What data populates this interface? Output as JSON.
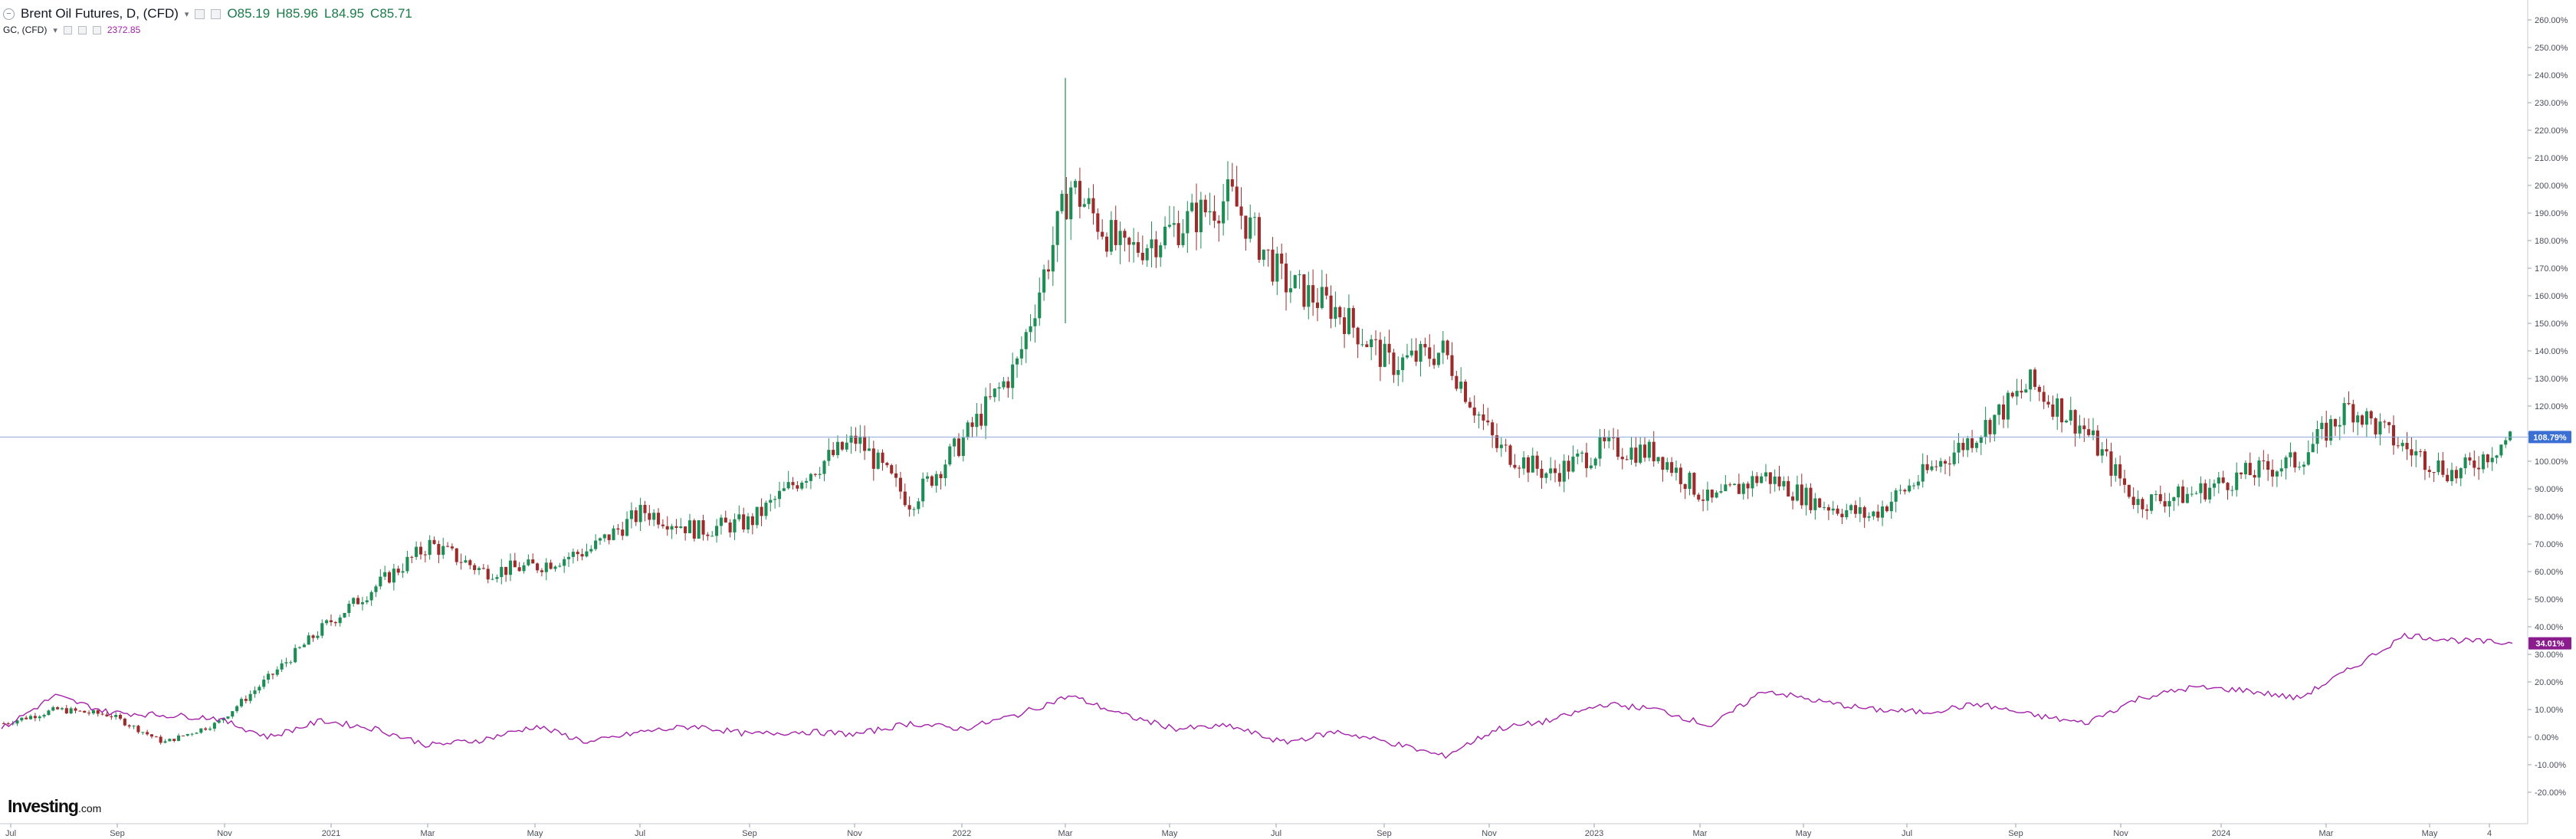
{
  "legend": {
    "main_title": "Brent Oil Futures, D, (CFD)",
    "caret": "▾",
    "open": "O85.19",
    "high": "H85.96",
    "low": "L84.95",
    "close": "C85.71",
    "sub_title": "GC, (CFD)",
    "sub_value": "2372.85"
  },
  "logo": {
    "brand": "Investing",
    "suffix": ".com"
  },
  "colors": {
    "candle_up": "#1e8c55",
    "candle_down": "#9c2c2c",
    "gold_line": "#a321a8",
    "hline": "#8fa8d6",
    "badge_brent": "#3b6fd4",
    "badge_gold": "#8a1c8e"
  },
  "chart_data": {
    "type": "line",
    "title": "",
    "xlabel": "",
    "ylabel": "",
    "ylim": [
      -25,
      265
    ],
    "y_tick_labels": [
      "260.00%",
      "250.00%",
      "240.00%",
      "230.00%",
      "220.00%",
      "210.00%",
      "200.00%",
      "190.00%",
      "180.00%",
      "170.00%",
      "160.00%",
      "150.00%",
      "140.00%",
      "130.00%",
      "120.00%",
      "110.00%",
      "100.00%",
      "90.00%",
      "80.00%",
      "70.00%",
      "60.00%",
      "50.00%",
      "40.00%",
      "30.00%",
      "20.00%",
      "10.00%",
      "0.00%",
      "-10.00%",
      "-20.00%"
    ],
    "x_tick_labels": [
      "Jul",
      "Sep",
      "Nov",
      "2021",
      "Mar",
      "May",
      "Jul",
      "Sep",
      "Nov",
      "2022",
      "Mar",
      "May",
      "Jul",
      "Sep",
      "Nov",
      "2023",
      "Mar",
      "May",
      "Jul",
      "Sep",
      "Nov",
      "2024",
      "Mar",
      "May",
      "4"
    ],
    "last_values": {
      "brent": "108.79%",
      "gold": "34.01%"
    },
    "series": [
      {
        "name": "Brent Oil Futures, D, (CFD)",
        "style": "candlestick",
        "x": [
          "Jul",
          "Aug",
          "Sep",
          "Oct",
          "Nov",
          "Dec",
          "2021",
          "Feb",
          "Mar",
          "Apr",
          "May",
          "Jun",
          "Jul",
          "Aug",
          "Sep",
          "Oct",
          "Nov",
          "Dec",
          "2022",
          "Feb",
          "Mar",
          "Apr",
          "May",
          "Jun",
          "Jul",
          "Aug",
          "Sep",
          "Oct",
          "Nov",
          "Dec",
          "2023",
          "Feb",
          "Mar",
          "Apr",
          "May",
          "Jun",
          "Jul",
          "Aug",
          "Sep",
          "Oct",
          "Nov",
          "Dec",
          "2024",
          "Feb",
          "Mar",
          "Apr",
          "May",
          "Jun"
        ],
        "values": [
          5,
          10,
          8,
          -2,
          5,
          22,
          40,
          55,
          70,
          60,
          62,
          68,
          82,
          75,
          78,
          95,
          108,
          85,
          108,
          135,
          200,
          175,
          185,
          196,
          165,
          155,
          135,
          140,
          105,
          95,
          105,
          103,
          85,
          95,
          85,
          80,
          95,
          110,
          128,
          112,
          85,
          88,
          95,
          100,
          120,
          105,
          95,
          108.79
        ]
      },
      {
        "name": "GC, (CFD)",
        "style": "line",
        "x": [
          "Jul",
          "Aug",
          "Sep",
          "Oct",
          "Nov",
          "Dec",
          "2021",
          "Feb",
          "Mar",
          "Apr",
          "May",
          "Jun",
          "Jul",
          "Aug",
          "Sep",
          "Oct",
          "Nov",
          "Dec",
          "2022",
          "Feb",
          "Mar",
          "Apr",
          "May",
          "Jun",
          "Jul",
          "Aug",
          "Sep",
          "Oct",
          "Nov",
          "Dec",
          "2023",
          "Feb",
          "Mar",
          "Apr",
          "May",
          "Jun",
          "Jul",
          "Aug",
          "Sep",
          "Oct",
          "Nov",
          "Dec",
          "2024",
          "Feb",
          "Mar",
          "Apr",
          "May",
          "Jun"
        ],
        "values": [
          3,
          15,
          9,
          8,
          7,
          0,
          6,
          3,
          -3,
          -1,
          4,
          -2,
          2,
          4,
          1,
          2,
          1,
          5,
          3,
          8,
          15,
          8,
          3,
          4,
          -2,
          2,
          -2,
          -7,
          3,
          6,
          12,
          10,
          4,
          17,
          13,
          10,
          9,
          12,
          8,
          5,
          14,
          18,
          17,
          14,
          25,
          37,
          35,
          34.01
        ]
      }
    ]
  }
}
